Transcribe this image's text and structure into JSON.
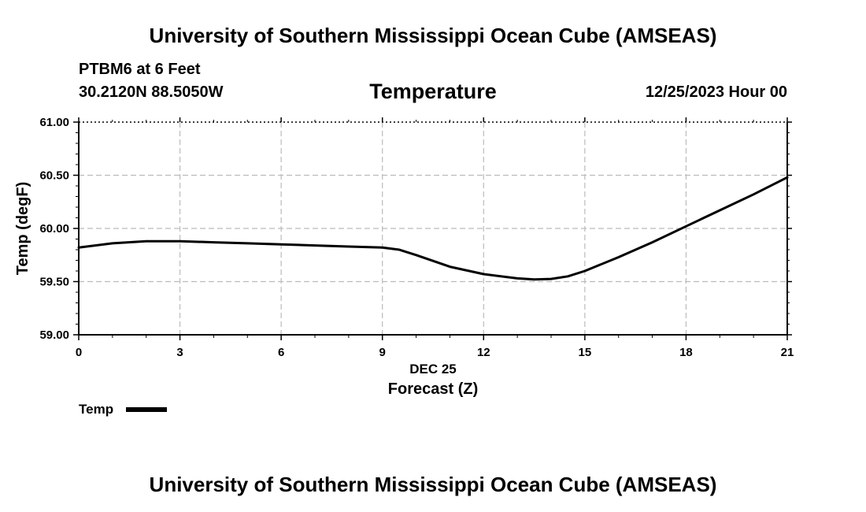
{
  "header": {
    "title": "University of Southern Mississippi Ocean Cube (AMSEAS)",
    "station": "PTBM6 at 6 Feet",
    "coords": "30.2120N  88.5050W",
    "date_hour": "12/25/2023 Hour 00"
  },
  "footer": {
    "title": "University of Southern Mississippi Ocean Cube (AMSEAS)"
  },
  "chart_data": {
    "type": "line",
    "title": "Temperature",
    "xlabel": "Forecast (Z)",
    "xlabel_date": "DEC 25",
    "ylabel": "Temp (degF)",
    "xlim": [
      0,
      21
    ],
    "ylim": [
      59.0,
      61.0
    ],
    "xticks": [
      0,
      3,
      6,
      9,
      12,
      15,
      18,
      21
    ],
    "xtick_labels": [
      "0",
      "3",
      "6",
      "9",
      "12",
      "15",
      "18",
      "21"
    ],
    "yticks": [
      59.0,
      59.5,
      60.0,
      60.5,
      61.0
    ],
    "ytick_labels": [
      "59.00",
      "59.50",
      "60.00",
      "60.50",
      "61.00"
    ],
    "grid": true,
    "legend_position": "bottom-left",
    "series": [
      {
        "name": "Temp",
        "color": "#000000",
        "x": [
          0,
          1,
          2,
          2.5,
          3,
          4,
          5,
          6,
          7,
          8,
          9,
          9.5,
          10,
          11,
          12,
          13,
          13.5,
          14,
          14.5,
          15,
          16,
          17,
          18,
          19,
          20,
          21
        ],
        "y": [
          59.82,
          59.86,
          59.88,
          59.88,
          59.88,
          59.87,
          59.86,
          59.85,
          59.84,
          59.83,
          59.82,
          59.8,
          59.75,
          59.64,
          59.57,
          59.53,
          59.52,
          59.525,
          59.55,
          59.6,
          59.73,
          59.87,
          60.02,
          60.17,
          60.32,
          60.48
        ]
      }
    ]
  }
}
